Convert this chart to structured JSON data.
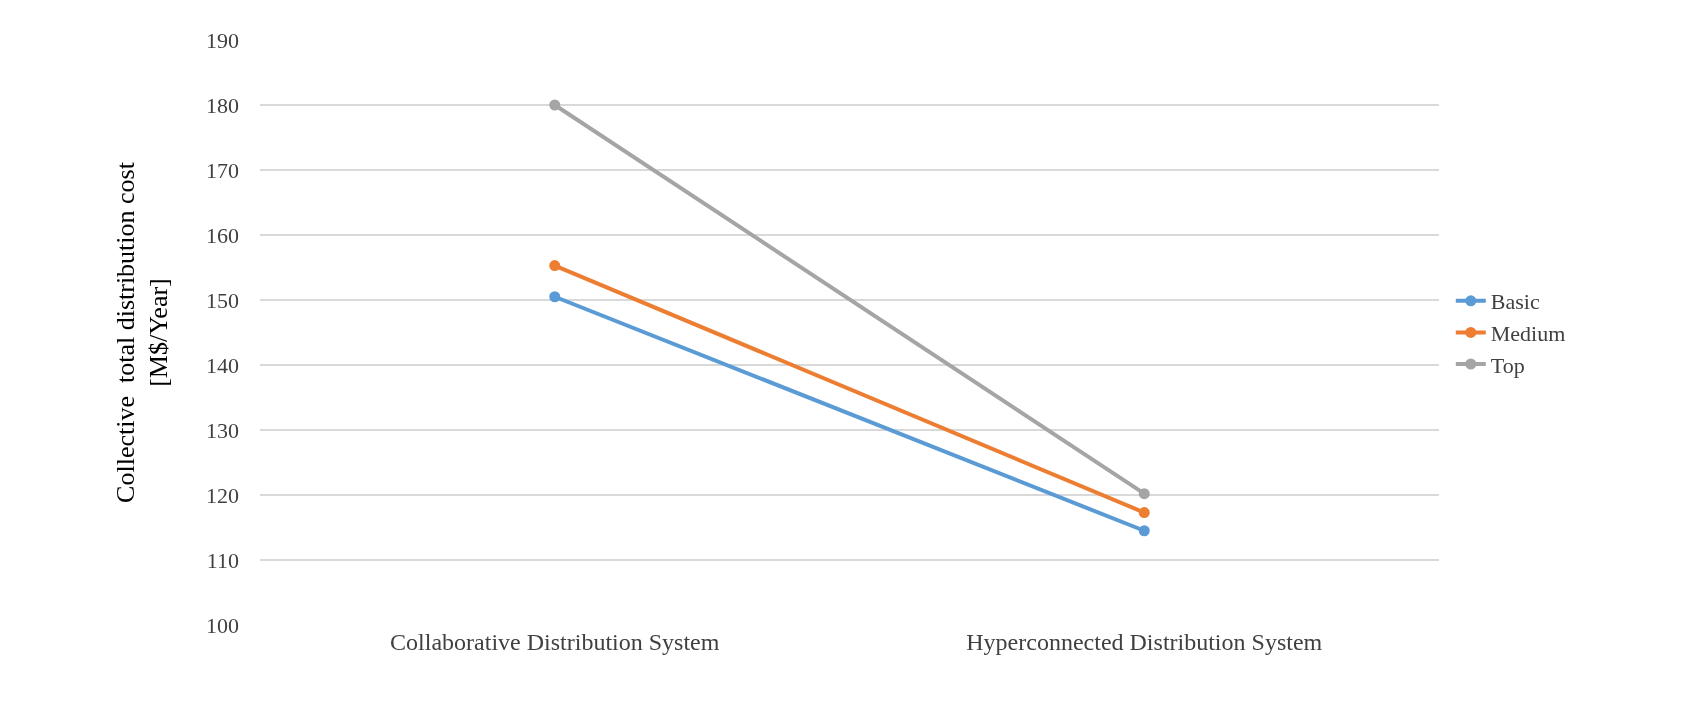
{
  "chart_data": {
    "type": "line",
    "ylabel": "Collective  total distribution cost\n[M$/Year]",
    "categories": [
      "Collaborative Distribution System",
      "Hyperconnected Distribution System"
    ],
    "series": [
      {
        "name": "Basic",
        "color": "#5b9bd5",
        "values": [
          150.5,
          114.5
        ]
      },
      {
        "name": "Medium",
        "color": "#ed7d31",
        "values": [
          155.3,
          117.3
        ]
      },
      {
        "name": "Top",
        "color": "#a5a5a5",
        "values": [
          180,
          120.2
        ]
      }
    ],
    "ylim": [
      100,
      190
    ],
    "yticks": [
      100,
      110,
      120,
      130,
      140,
      150,
      160,
      170,
      180,
      190
    ],
    "grid": "y",
    "legend": "right",
    "marker": "circle",
    "line_style": "solid"
  }
}
